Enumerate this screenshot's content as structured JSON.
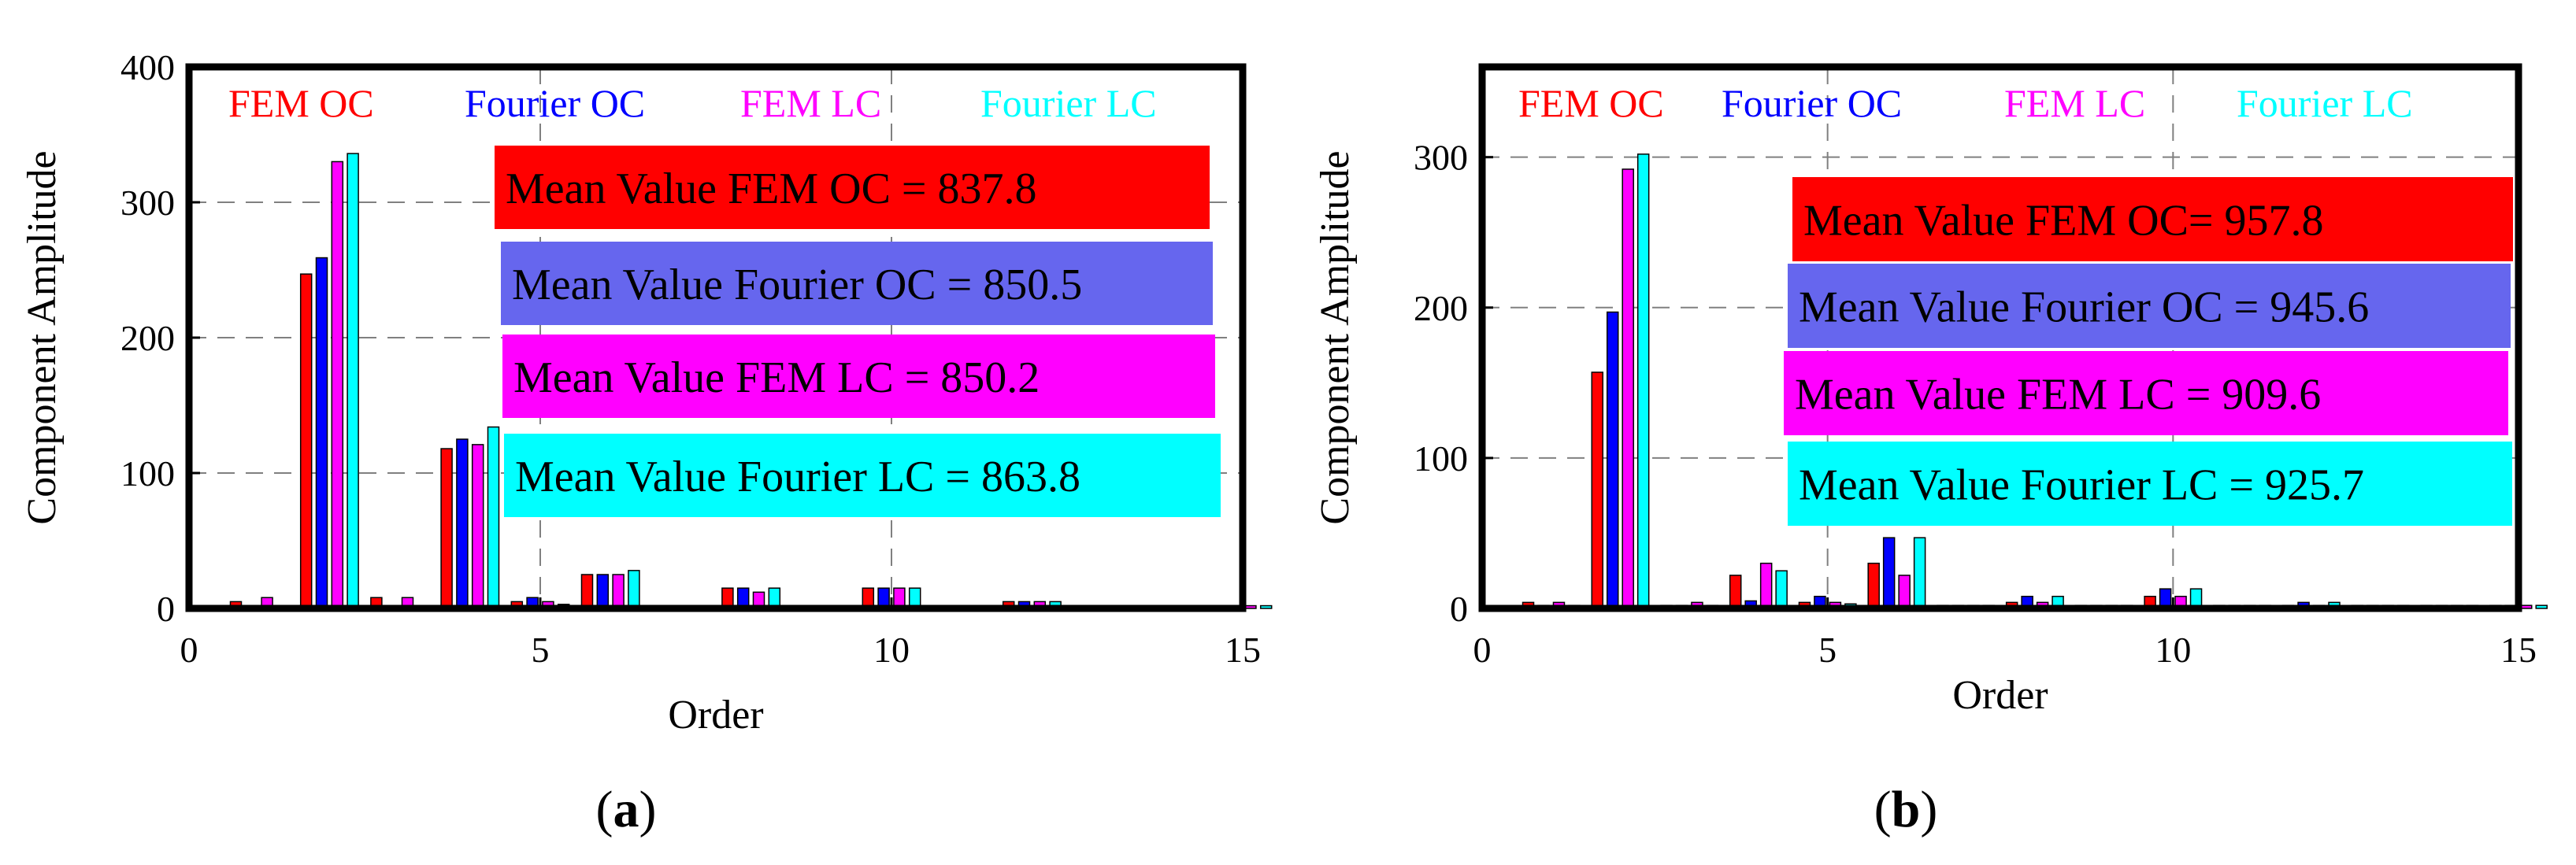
{
  "chart_data": [
    {
      "type": "bar",
      "panel_label": "a",
      "xlabel": "Order",
      "ylabel": "Component Amplitude",
      "xlim": [
        0,
        15
      ],
      "ylim": [
        0,
        400
      ],
      "xticks": [
        0,
        5,
        10,
        15
      ],
      "yticks": [
        0,
        100,
        200,
        300,
        400
      ],
      "grid": true,
      "series": [
        {
          "name": "FEM OC",
          "color": "#ff0000",
          "x": [
            1,
            2,
            3,
            4,
            5,
            6,
            7,
            8,
            9,
            10,
            11,
            12,
            13,
            14,
            15
          ],
          "values": [
            5,
            247,
            8,
            118,
            5,
            25,
            2,
            15,
            2,
            15,
            2,
            5,
            2,
            2,
            2
          ]
        },
        {
          "name": "Fourier OC",
          "color": "#0000ff",
          "x": [
            1,
            2,
            3,
            4,
            5,
            6,
            7,
            8,
            9,
            10,
            11,
            12,
            13,
            14,
            15
          ],
          "values": [
            2,
            259,
            2,
            125,
            8,
            25,
            2,
            15,
            2,
            15,
            2,
            5,
            2,
            2,
            2
          ]
        },
        {
          "name": "FEM LC",
          "color": "#ff00ff",
          "x": [
            1,
            2,
            3,
            4,
            5,
            6,
            7,
            8,
            9,
            10,
            11,
            12,
            13,
            14,
            15
          ],
          "values": [
            8,
            330,
            8,
            121,
            5,
            25,
            2,
            12,
            2,
            15,
            2,
            5,
            2,
            2,
            2
          ]
        },
        {
          "name": "Fourier LC",
          "color": "#00ffff",
          "x": [
            1,
            2,
            3,
            4,
            5,
            6,
            7,
            8,
            9,
            10,
            11,
            12,
            13,
            14,
            15
          ],
          "values": [
            2,
            336,
            2,
            134,
            3,
            28,
            2,
            15,
            2,
            15,
            2,
            5,
            2,
            2,
            2
          ]
        }
      ],
      "mean_values": [
        {
          "label": "Mean Value FEM OC = 837.8",
          "color": "#ff0000"
        },
        {
          "label": "Mean Value Fourier OC = 850.5",
          "color": "#6666ee"
        },
        {
          "label": "Mean Value FEM LC = 850.2",
          "color": "#ff00ff"
        },
        {
          "label": "Mean Value Fourier LC = 863.8",
          "color": "#00ffff"
        }
      ]
    },
    {
      "type": "bar",
      "panel_label": "b",
      "xlabel": "Order",
      "ylabel": "Component Amplitude",
      "xlim": [
        0,
        15
      ],
      "ylim": [
        0,
        360
      ],
      "xticks": [
        0,
        5,
        10,
        15
      ],
      "yticks": [
        0,
        100,
        200,
        300
      ],
      "grid": true,
      "series": [
        {
          "name": "FEM OC",
          "color": "#ff0000",
          "x": [
            1,
            2,
            3,
            4,
            5,
            6,
            7,
            8,
            9,
            10,
            11,
            12,
            13,
            14,
            15
          ],
          "values": [
            4,
            157,
            2,
            22,
            4,
            30,
            2,
            4,
            2,
            8,
            2,
            2,
            2,
            2,
            2
          ]
        },
        {
          "name": "Fourier OC",
          "color": "#0000ff",
          "x": [
            1,
            2,
            3,
            4,
            5,
            6,
            7,
            8,
            9,
            10,
            11,
            12,
            13,
            14,
            15
          ],
          "values": [
            2,
            197,
            2,
            5,
            8,
            47,
            2,
            8,
            2,
            13,
            2,
            4,
            2,
            2,
            2
          ]
        },
        {
          "name": "FEM LC",
          "color": "#ff00ff",
          "x": [
            1,
            2,
            3,
            4,
            5,
            6,
            7,
            8,
            9,
            10,
            11,
            12,
            13,
            14,
            15
          ],
          "values": [
            4,
            292,
            4,
            30,
            4,
            22,
            2,
            4,
            2,
            8,
            2,
            2,
            2,
            2,
            2
          ]
        },
        {
          "name": "Fourier LC",
          "color": "#00ffff",
          "x": [
            1,
            2,
            3,
            4,
            5,
            6,
            7,
            8,
            9,
            10,
            11,
            12,
            13,
            14,
            15
          ],
          "values": [
            2,
            302,
            2,
            25,
            3,
            47,
            2,
            8,
            2,
            13,
            2,
            4,
            2,
            2,
            2
          ]
        }
      ],
      "mean_values": [
        {
          "label": "Mean Value FEM OC= 957.8",
          "color": "#ff0000"
        },
        {
          "label": "Mean Value Fourier OC = 945.6",
          "color": "#6666ee"
        },
        {
          "label": "Mean Value FEM LC = 909.6",
          "color": "#ff00ff"
        },
        {
          "label": "Mean Value Fourier LC = 925.7",
          "color": "#00ffff"
        }
      ]
    }
  ]
}
